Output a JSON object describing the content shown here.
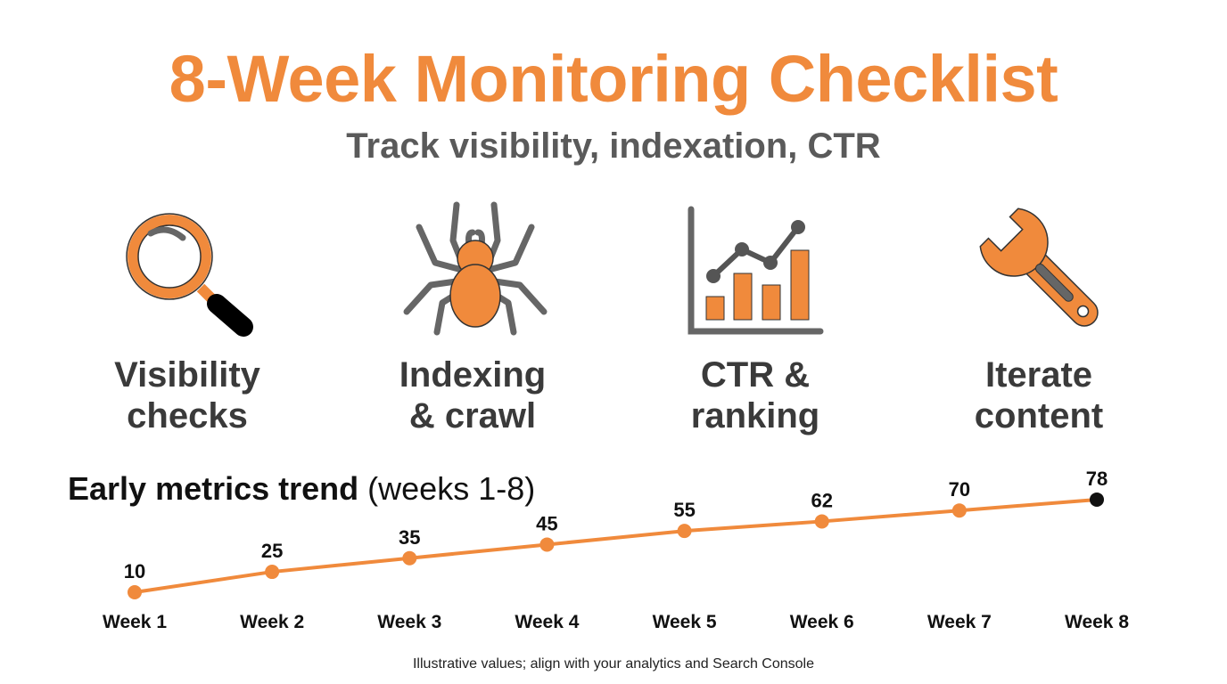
{
  "header": {
    "title": "8-Week Monitoring Checklist",
    "subtitle": "Track visibility, indexation, CTR"
  },
  "cards": [
    {
      "icon": "magnifier-icon",
      "line1": "Visibility",
      "line2": "checks"
    },
    {
      "icon": "spider-icon",
      "line1": "Indexing",
      "line2": "& crawl"
    },
    {
      "icon": "bar-line-chart-icon",
      "line1": "CTR &",
      "line2": "ranking"
    },
    {
      "icon": "wrench-icon",
      "line1": "Iterate",
      "line2": "content"
    }
  ],
  "trend": {
    "title_bold": "Early metrics trend",
    "title_rest": " (weeks 1-8)"
  },
  "colors": {
    "accent": "#F08A3C",
    "dark": "#3a3a3a",
    "gray": "#5a5a5a",
    "last_point": "#111111"
  },
  "chart_data": {
    "type": "line",
    "title": "Early metrics trend (weeks 1-8)",
    "categories": [
      "Week 1",
      "Week 2",
      "Week 3",
      "Week 4",
      "Week 5",
      "Week 6",
      "Week 7",
      "Week 8"
    ],
    "values": [
      10,
      25,
      35,
      45,
      55,
      62,
      70,
      78
    ],
    "xlabel": "",
    "ylabel": "",
    "grid": false
  },
  "footnote": "Illustrative values; align with your analytics and Search Console"
}
